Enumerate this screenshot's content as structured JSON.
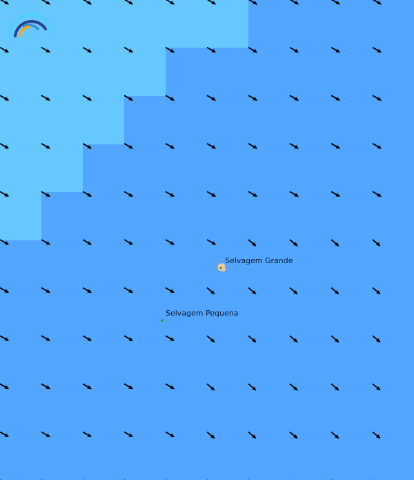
{
  "map": {
    "colors": {
      "deep_water": "#52a6ff",
      "shallow_water": "#66c8ff",
      "land": "#f2c89a",
      "marker": "#1a9a1a",
      "arrow": "#000000"
    },
    "places": [
      {
        "name": "Selvagem Grande",
        "type": "island"
      },
      {
        "name": "Selvagem Pequena",
        "type": "islet"
      }
    ],
    "wind_arrows": {
      "direction_deg_default": 30,
      "direction_deg_steep": 40
    },
    "logo_icon": "rainbow-arc-logo"
  }
}
